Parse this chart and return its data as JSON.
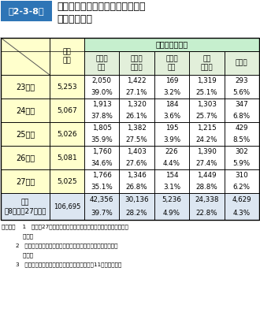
{
  "title_label": "第2-3-8表",
  "title_text": "各年度の消防職員委員会審議件数\n及び審議結果",
  "sub_headers": [
    "実施が\n適当",
    "諸課題\nを検討",
    "実施は\n困難",
    "現行\nどおり",
    "その他"
  ],
  "rows": [
    {
      "year": "23年度",
      "total": "5,253",
      "v1": "2,050",
      "v2": "1,422",
      "v3": "169",
      "v4": "1,319",
      "v5": "293",
      "p1": "39.0%",
      "p2": "27.1%",
      "p3": "3.2%",
      "p4": "25.1%",
      "p5": "5.6%"
    },
    {
      "year": "24年度",
      "total": "5,067",
      "v1": "1,913",
      "v2": "1,320",
      "v3": "184",
      "v4": "1,303",
      "v5": "347",
      "p1": "37.8%",
      "p2": "26.1%",
      "p3": "3.6%",
      "p4": "25.7%",
      "p5": "6.8%"
    },
    {
      "year": "25年度",
      "total": "5,026",
      "v1": "1,805",
      "v2": "1,382",
      "v3": "195",
      "v4": "1,215",
      "v5": "429",
      "p1": "35.9%",
      "p2": "27.5%",
      "p3": "3.9%",
      "p4": "24.2%",
      "p5": "8.5%"
    },
    {
      "year": "26年度",
      "total": "5,081",
      "v1": "1,760",
      "v2": "1,403",
      "v3": "226",
      "v4": "1,390",
      "v5": "302",
      "p1": "34.6%",
      "p2": "27.6%",
      "p3": "4.4%",
      "p4": "27.4%",
      "p5": "5.9%"
    },
    {
      "year": "27年度",
      "total": "5,025",
      "v1": "1,766",
      "v2": "1,346",
      "v3": "154",
      "v4": "1,449",
      "v5": "310",
      "p1": "35.1%",
      "p2": "26.8%",
      "p3": "3.1%",
      "p4": "28.8%",
      "p5": "6.2%"
    }
  ],
  "cumulative": {
    "year": "累計\n（8年度〜27年度）",
    "total": "106,695",
    "v1": "42,356",
    "v2": "30,136",
    "v3": "5,236",
    "v4": "24,338",
    "v5": "4,629",
    "p1": "39.7%",
    "p2": "28.2%",
    "p3": "4.9%",
    "p4": "22.8%",
    "p5": "4.3%"
  },
  "notes": [
    "（備考）    1   「平成27年度における消防職員委員会の運営状況調査」によ",
    "            り作成",
    "        2   小数点第二位を四捨五入のため、合計等が一致しない場合が",
    "            ある。",
    "        3   審議結果のうち、「その他」については平成11年度から設定"
  ],
  "color_title_bg": "#2e75b6",
  "color_title_text": "#ffffff",
  "color_header_bg": "#c6efce",
  "color_year_bg": "#ffffcc",
  "color_cumul_bg": "#dce6f1",
  "color_white": "#ffffff",
  "color_border": "#000000",
  "color_subheader_bg": "#e2efda"
}
